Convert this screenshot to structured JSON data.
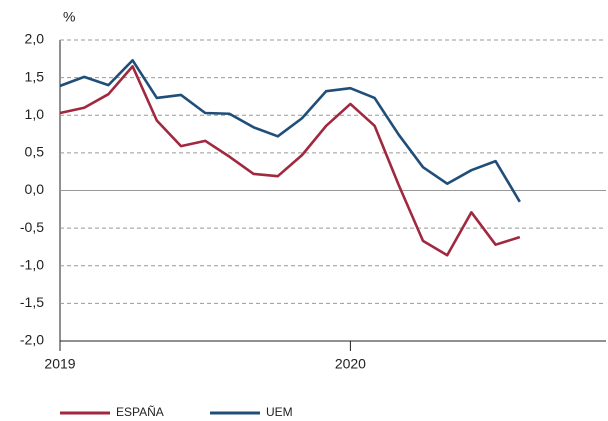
{
  "chart_data": {
    "type": "line",
    "y_label": "%",
    "categories": [
      "2019",
      null,
      null,
      null,
      null,
      null,
      null,
      null,
      null,
      null,
      null,
      null,
      "2020",
      null,
      null,
      null,
      null,
      null,
      null,
      null
    ],
    "series": [
      {
        "name": "ESPAÑA",
        "color": "#a0283f",
        "values": [
          1.03,
          1.1,
          1.28,
          1.65,
          0.93,
          0.59,
          0.66,
          0.45,
          0.22,
          0.19,
          0.47,
          0.86,
          1.15,
          0.86,
          0.07,
          -0.67,
          -0.86,
          -0.29,
          -0.72,
          -0.62
        ]
      },
      {
        "name": "UEM",
        "color": "#1f4e79",
        "values": [
          1.39,
          1.51,
          1.4,
          1.73,
          1.23,
          1.27,
          1.03,
          1.02,
          0.84,
          0.72,
          0.96,
          1.32,
          1.36,
          1.23,
          0.74,
          0.31,
          0.09,
          0.27,
          0.39,
          -0.15
        ]
      }
    ],
    "ylim": [
      -2,
      2
    ],
    "yticks": [
      {
        "value": -2,
        "label": "-2,0"
      },
      {
        "value": -1.5,
        "label": "-1,5"
      },
      {
        "value": -1,
        "label": "-1,0"
      },
      {
        "value": -0.5,
        "label": "-0,5"
      },
      {
        "value": 0,
        "label": "0,0"
      },
      {
        "value": 0.5,
        "label": "0,5"
      },
      {
        "value": 1,
        "label": "1,0"
      },
      {
        "value": 1.5,
        "label": "1,5"
      },
      {
        "value": 2,
        "label": "2,0"
      }
    ],
    "grid": true
  }
}
